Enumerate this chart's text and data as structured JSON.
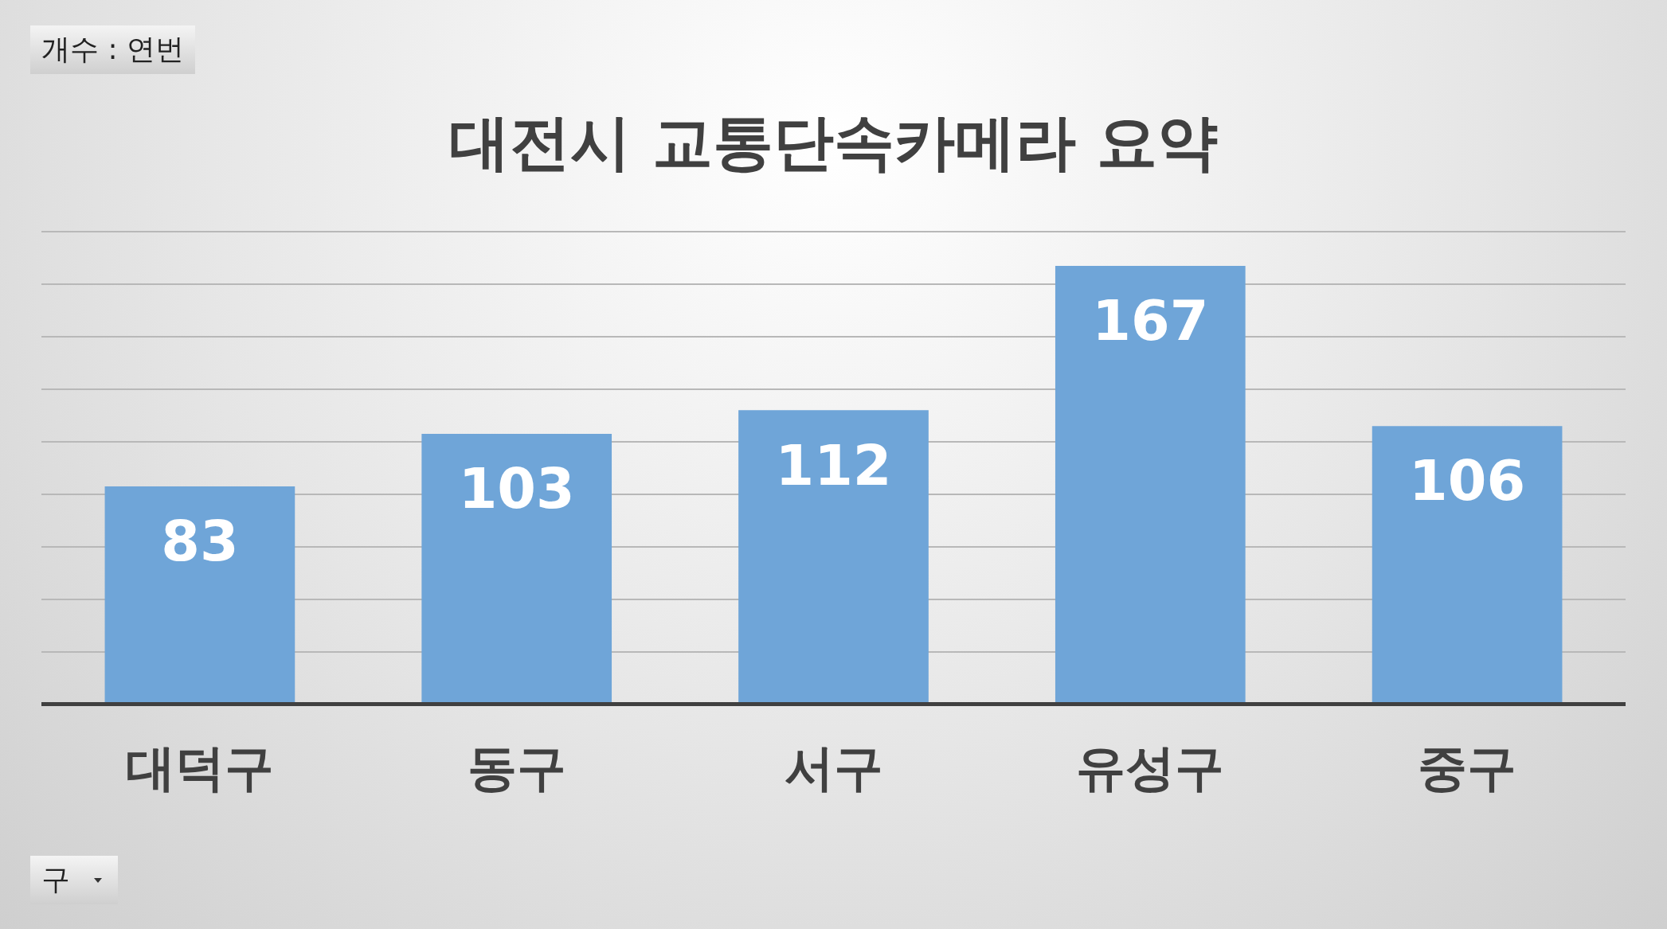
{
  "chart_data": {
    "type": "bar",
    "title": "대전시 교통단속카메라 요약",
    "categories": [
      "대덕구",
      "동구",
      "서구",
      "유성구",
      "중구"
    ],
    "values": [
      83,
      103,
      112,
      167,
      106
    ],
    "color": "#6fa5d8",
    "grid": "y",
    "tick_labels": "x",
    "data_labels": true,
    "legend": false,
    "annotations": [
      "개수 : 연번",
      "구"
    ]
  }
}
